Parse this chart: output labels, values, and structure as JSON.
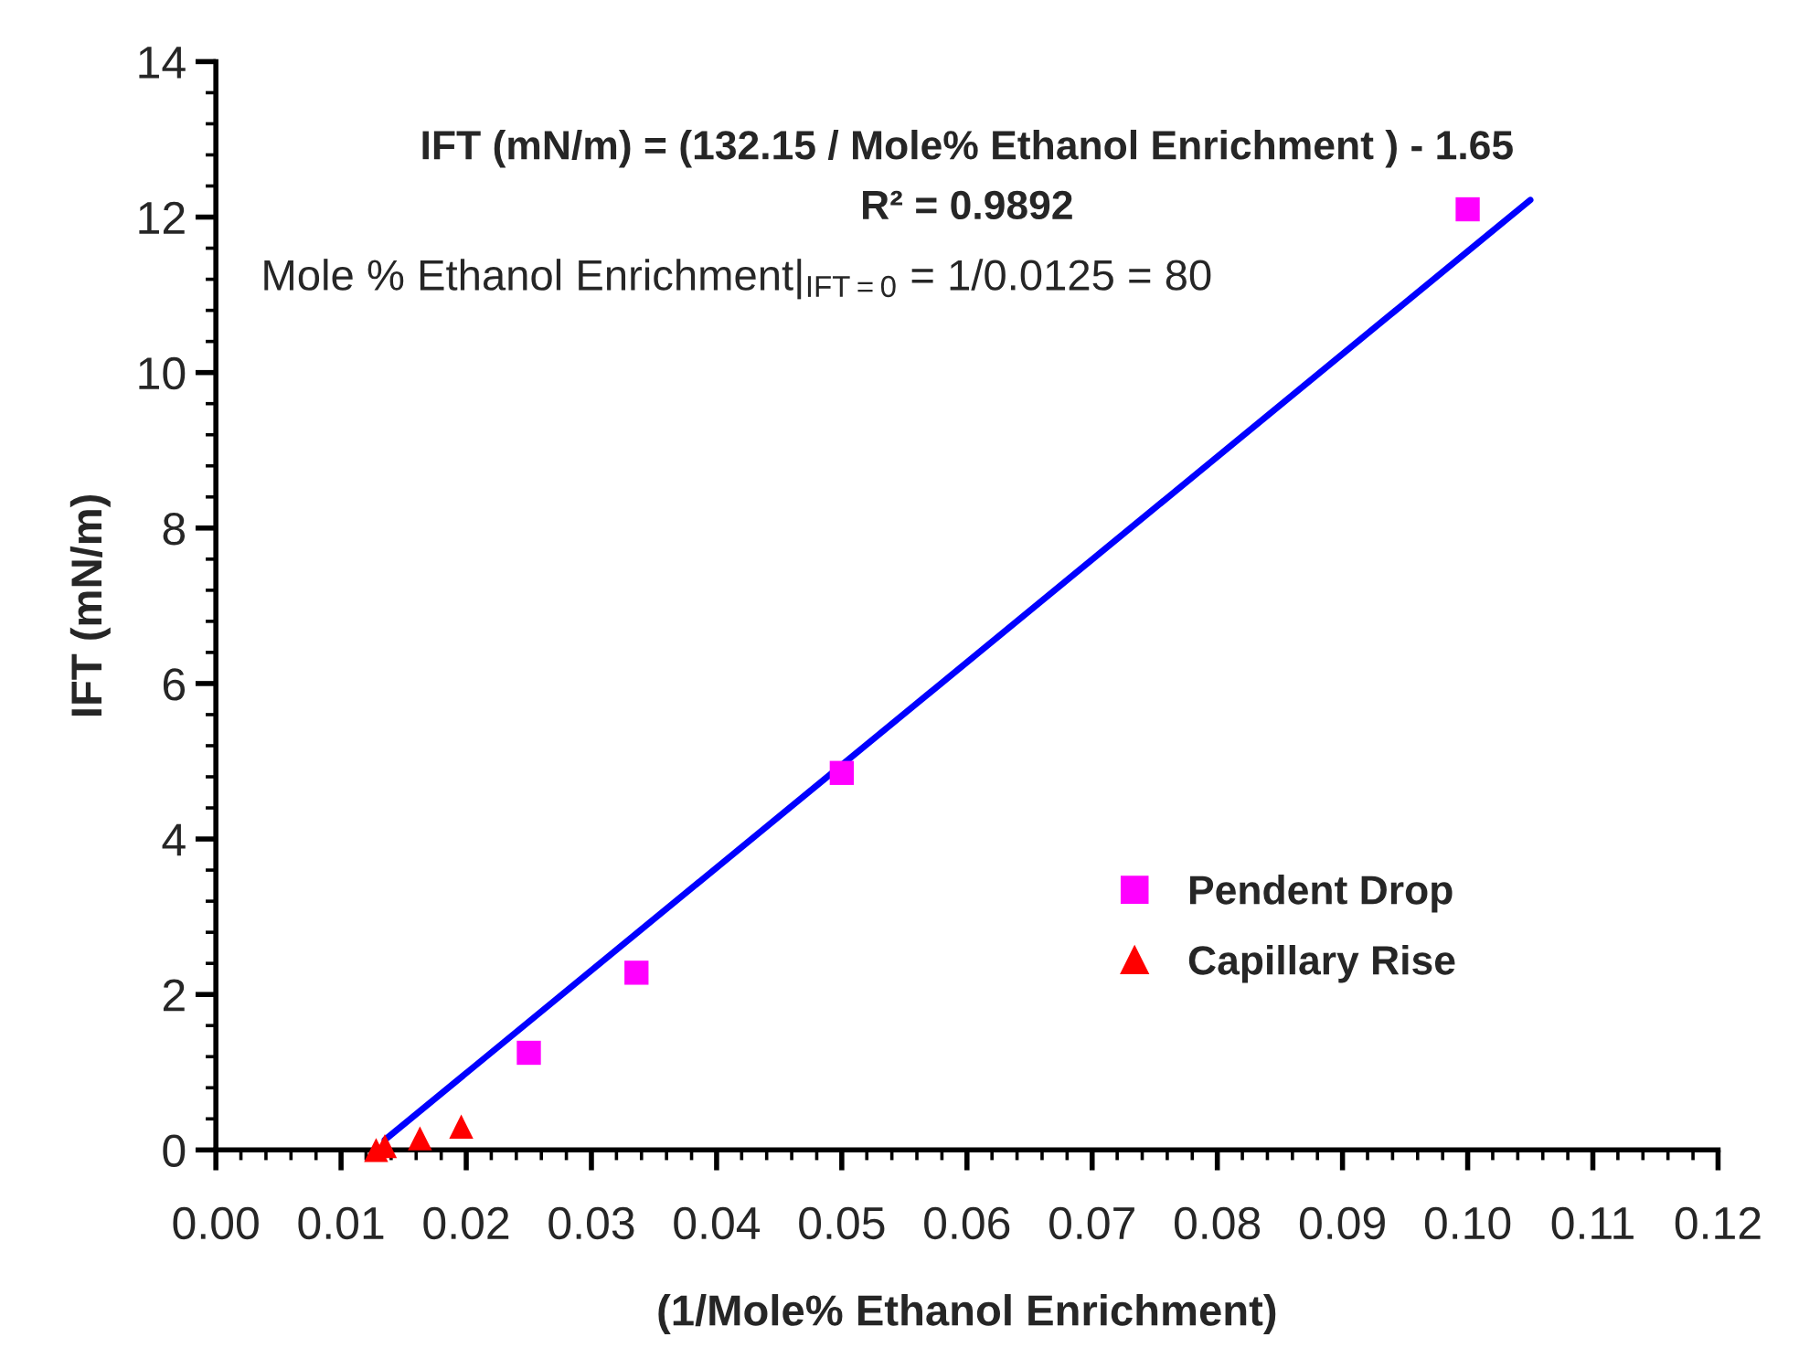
{
  "chart_data": {
    "type": "scatter",
    "xlabel": "(1/Mole% Ethanol Enrichment)",
    "ylabel": "IFT (mN/m)",
    "annotations": [
      "IFT (mN/m) = (132.15 / Mole% Ethanol Enrichment ) - 1.65",
      "R² = 0.9892",
      "Mole % Ethanol Enrichment|$_{IFT=0}$ = 1/0.0125 = 80"
    ],
    "series": [
      {
        "name": "Pendent Drop",
        "color": "#ff00ff",
        "marker": "square",
        "x": [
          0.025,
          0.0336,
          0.05,
          0.1
        ],
        "values": [
          1.25,
          2.28,
          4.85,
          12.1
        ]
      },
      {
        "name": "Capillary Rise",
        "color": "#ff0000",
        "marker": "triangle",
        "x": [
          0.0128,
          0.0135,
          0.0163,
          0.0196
        ],
        "values": [
          0.0,
          0.05,
          0.15,
          0.3
        ]
      },
      {
        "type": "line",
        "color": "#0000ff",
        "marker": "none",
        "line_style": "solid",
        "x": [
          0.0135,
          0.105
        ],
        "values": [
          0.13,
          12.22
        ]
      }
    ],
    "xlim": [
      0,
      0.12
    ],
    "xticks": [
      {
        "value": 0,
        "label": "0.00"
      },
      {
        "value": 0.01,
        "label": "0.01"
      },
      {
        "value": 0.02,
        "label": "0.02"
      },
      {
        "value": 0.03,
        "label": "0.03"
      },
      {
        "value": 0.04,
        "label": "0.04"
      },
      {
        "value": 0.05,
        "label": "0.05"
      },
      {
        "value": 0.06,
        "label": "0.06"
      },
      {
        "value": 0.07,
        "label": "0.07"
      },
      {
        "value": 0.08,
        "label": "0.08"
      },
      {
        "value": 0.09,
        "label": "0.09"
      },
      {
        "value": 0.1,
        "label": "0.10"
      },
      {
        "value": 0.11,
        "label": "0.11"
      },
      {
        "value": 0.12,
        "label": "0.12"
      }
    ],
    "ylim": [
      0,
      14
    ],
    "yticks": [
      0,
      2,
      4,
      6,
      8,
      10,
      12,
      14
    ],
    "grid": false,
    "legend": "bottom right"
  }
}
